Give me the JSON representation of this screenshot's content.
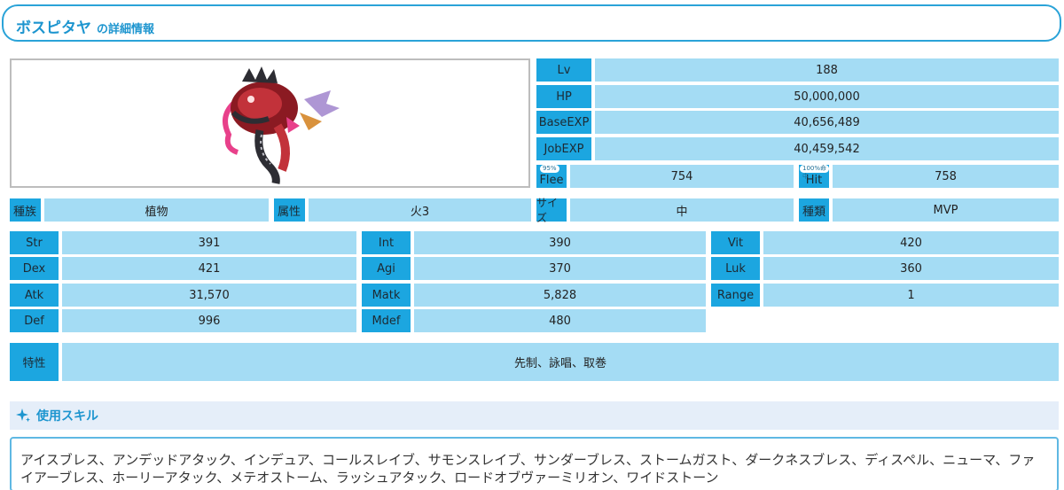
{
  "header": {
    "name": "ボスピタヤ",
    "suffix": "の詳細情報"
  },
  "stats_top": [
    {
      "label": "Lv",
      "value": "188"
    },
    {
      "label": "HP",
      "value": "50,000,000"
    },
    {
      "label": "BaseEXP",
      "value": "40,656,489"
    },
    {
      "label": "JobEXP",
      "value": "40,459,542"
    }
  ],
  "flee": {
    "label": "Flee",
    "badge": "95%",
    "value": "754"
  },
  "hit": {
    "label": "Hit",
    "badge": "100%命中",
    "value": "758"
  },
  "category": [
    {
      "label": "種族",
      "value": "植物"
    },
    {
      "label": "属性",
      "value": "火3"
    },
    {
      "label": "サイズ",
      "value": "中"
    },
    {
      "label": "種類",
      "value": "MVP"
    }
  ],
  "stats": {
    "str": {
      "label": "Str",
      "value": "391"
    },
    "int": {
      "label": "Int",
      "value": "390"
    },
    "vit": {
      "label": "Vit",
      "value": "420"
    },
    "dex": {
      "label": "Dex",
      "value": "421"
    },
    "agi": {
      "label": "Agi",
      "value": "370"
    },
    "luk": {
      "label": "Luk",
      "value": "360"
    },
    "atk": {
      "label": "Atk",
      "value": "31,570"
    },
    "matk": {
      "label": "Matk",
      "value": "5,828"
    },
    "range": {
      "label": "Range",
      "value": "1"
    },
    "def": {
      "label": "Def",
      "value": "996"
    },
    "mdef": {
      "label": "Mdef",
      "value": "480"
    }
  },
  "traits": {
    "label": "特性",
    "value": "先制、詠唱、取巻"
  },
  "skills": {
    "title": "使用スキル",
    "icon": "sparkle-icon",
    "list": "アイスブレス、アンデッドアタック、インデュア、コールスレイブ、サモンスレイブ、サンダーブレス、ストームガスト、ダークネスブレス、ディスペル、ニューマ、ファイアーブレス、ホーリーアタック、メテオストーム、ラッシュアタック、ロードオブヴァーミリオン、ワイドストーン"
  }
}
